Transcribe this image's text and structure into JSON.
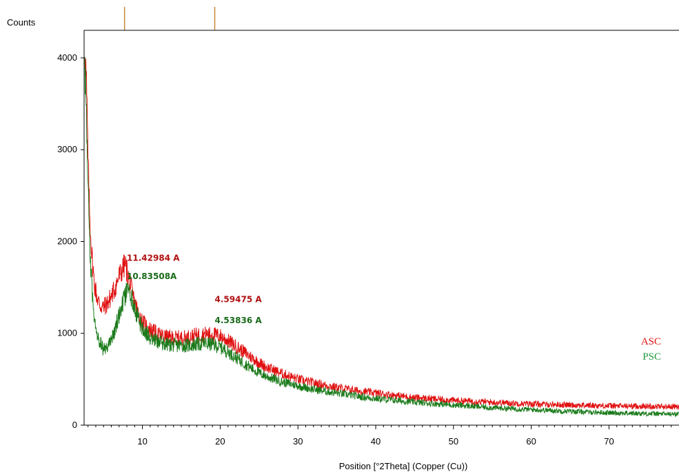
{
  "chart_data": {
    "type": "line",
    "ylabel": "Counts",
    "xlabel": "Position [°2Theta] (Copper (Cu))",
    "xlim": [
      2.5,
      79
    ],
    "ylim": [
      0,
      4300
    ],
    "grid": false,
    "x_ticks": [
      10,
      20,
      30,
      40,
      50,
      60,
      70
    ],
    "y_ticks": [
      0,
      1000,
      2000,
      3000,
      4000
    ],
    "x_tick_labels": [
      "10",
      "20",
      "30",
      "40",
      "50",
      "60",
      "70"
    ],
    "y_tick_labels": [
      "0",
      "1000",
      "2000",
      "3000",
      "4000"
    ],
    "reference_markers": [
      7.7,
      19.3
    ],
    "series": [
      {
        "name": "ASC",
        "color": "#e01010",
        "x": [
          2.6,
          2.8,
          3.0,
          3.2,
          3.5,
          3.8,
          4.2,
          4.6,
          5.0,
          5.5,
          6.0,
          6.5,
          7.0,
          7.5,
          7.8,
          8.0,
          8.5,
          9.0,
          9.5,
          10.0,
          11,
          12,
          13,
          14,
          15,
          16,
          17,
          18,
          19,
          20,
          21,
          22,
          23,
          24,
          25,
          26,
          28,
          30,
          32,
          35,
          38,
          40,
          45,
          50,
          55,
          60,
          65,
          70,
          75,
          79
        ],
        "y": [
          4150,
          3700,
          2900,
          2300,
          1850,
          1550,
          1380,
          1300,
          1280,
          1330,
          1400,
          1500,
          1620,
          1710,
          1750,
          1680,
          1500,
          1330,
          1220,
          1120,
          1040,
          990,
          960,
          950,
          950,
          960,
          980,
          990,
          990,
          970,
          920,
          860,
          800,
          740,
          680,
          630,
          560,
          500,
          460,
          410,
          370,
          350,
          300,
          270,
          250,
          230,
          220,
          210,
          205,
          200
        ]
      },
      {
        "name": "PSC",
        "color": "#1a7a1a",
        "x": [
          2.6,
          2.8,
          3.0,
          3.2,
          3.5,
          3.8,
          4.2,
          4.6,
          5.0,
          5.5,
          6.0,
          6.5,
          7.0,
          7.5,
          8.0,
          8.5,
          9.0,
          9.5,
          10.0,
          11,
          12,
          13,
          14,
          15,
          16,
          17,
          18,
          19,
          20,
          21,
          22,
          23,
          24,
          25,
          26,
          28,
          30,
          32,
          35,
          38,
          40,
          45,
          50,
          55,
          60,
          65,
          70,
          75,
          79
        ],
        "y": [
          4000,
          3300,
          2600,
          2000,
          1500,
          1200,
          1000,
          900,
          820,
          850,
          940,
          1050,
          1200,
          1330,
          1450,
          1420,
          1280,
          1150,
          1050,
          960,
          910,
          880,
          870,
          870,
          870,
          880,
          890,
          880,
          850,
          800,
          740,
          680,
          620,
          570,
          530,
          470,
          430,
          390,
          350,
          310,
          290,
          250,
          220,
          190,
          170,
          150,
          135,
          125,
          120
        ]
      }
    ],
    "annotations": [
      {
        "text": "11.42984 A",
        "x": 8.0,
        "y": 1790,
        "color": "#b01010"
      },
      {
        "text": "10.83508A",
        "x": 8.0,
        "y": 1590,
        "color": "#1a6a1a"
      },
      {
        "text": "4.59475 A",
        "x": 19.3,
        "y": 1340,
        "color": "#b01010"
      },
      {
        "text": "4.53836 A",
        "x": 19.3,
        "y": 1110,
        "color": "#1a6a1a"
      }
    ],
    "legend_position": "right",
    "legend": [
      {
        "label": "ASC",
        "color": "#e01010"
      },
      {
        "label": "PSC",
        "color": "#1a9a3a"
      }
    ]
  }
}
